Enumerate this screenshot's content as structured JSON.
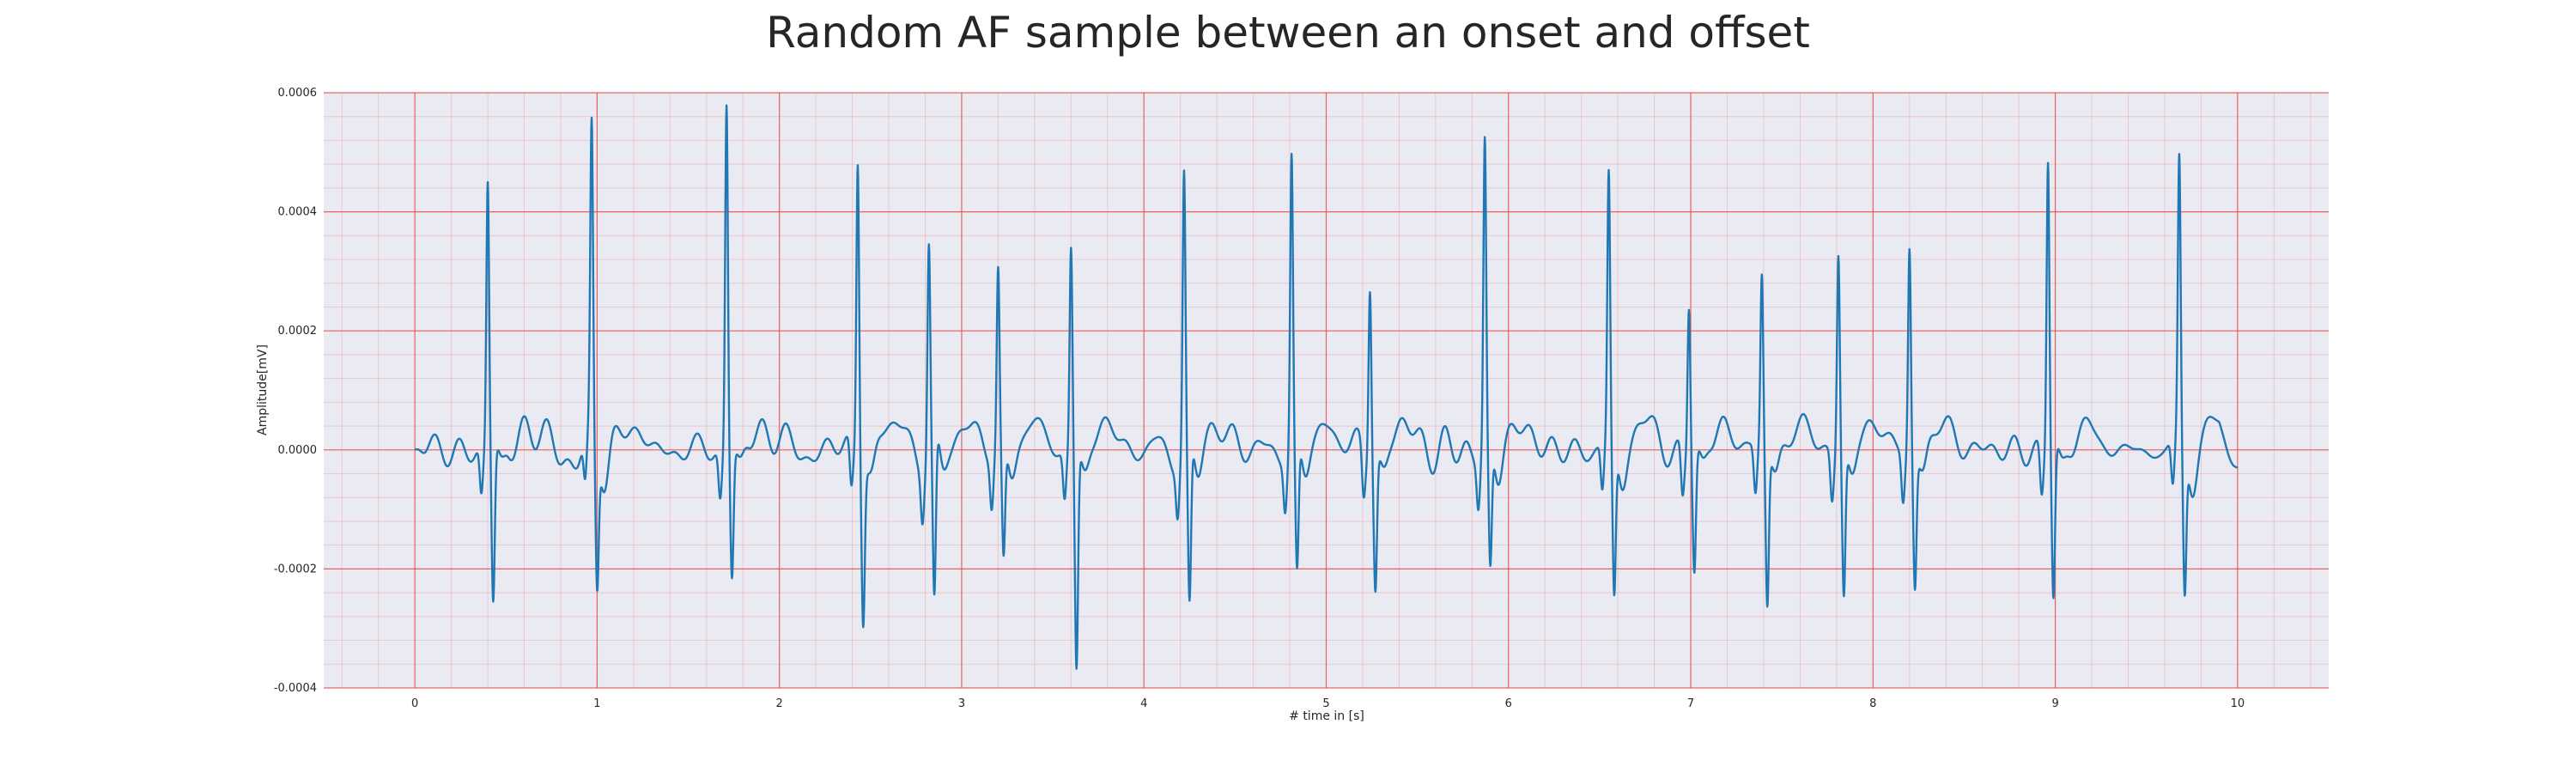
{
  "chart_data": {
    "type": "line",
    "title": "Random AF sample between an onset and offset",
    "xlabel": "# time in [s]",
    "ylabel": "Amplitude[mV]",
    "xlim": [
      -0.5,
      10.5
    ],
    "ylim": [
      -0.0004,
      0.0006
    ],
    "x_ticks": [
      0,
      1,
      2,
      3,
      4,
      5,
      6,
      7,
      8,
      9,
      10
    ],
    "y_ticks": [
      -0.0004,
      -0.0002,
      0.0,
      0.0002,
      0.0004,
      0.0006
    ],
    "x_tick_labels": [
      "0",
      "1",
      "2",
      "3",
      "4",
      "5",
      "6",
      "7",
      "8",
      "9",
      "10"
    ],
    "y_tick_labels": [
      "-0.0004",
      "-0.0002",
      "0.0000",
      "0.0002",
      "0.0004",
      "0.0006"
    ],
    "grid": true,
    "minor_grid": true,
    "grid_color": "#e8504f",
    "background_color": "#eaeaf2",
    "line_color": "#1f77b4",
    "series": [
      {
        "beats": [
          {
            "t": 0.4,
            "peak": 0.00045,
            "trough": -0.00026
          },
          {
            "t": 0.97,
            "peak": 0.00051,
            "trough": -0.00023
          },
          {
            "t": 1.71,
            "peak": 0.00059,
            "trough": -0.00021
          },
          {
            "t": 2.43,
            "peak": 0.0005,
            "trough": -0.00026
          },
          {
            "t": 2.82,
            "peak": 0.00035,
            "trough": -0.00028
          },
          {
            "t": 3.2,
            "peak": 0.0003,
            "trough": -0.00019
          },
          {
            "t": 3.6,
            "peak": 0.00034,
            "trough": -0.00037
          },
          {
            "t": 4.22,
            "peak": 0.00046,
            "trough": -0.00028
          },
          {
            "t": 4.81,
            "peak": 0.00049,
            "trough": -0.00022
          },
          {
            "t": 5.24,
            "peak": 0.0003,
            "trough": -0.00022
          },
          {
            "t": 5.87,
            "peak": 0.00051,
            "trough": -0.00021
          },
          {
            "t": 6.55,
            "peak": 0.00045,
            "trough": -0.00025
          },
          {
            "t": 6.99,
            "peak": 0.00026,
            "trough": -0.0002
          },
          {
            "t": 7.39,
            "peak": 0.00029,
            "trough": -0.00026
          },
          {
            "t": 7.81,
            "peak": 0.00034,
            "trough": -0.00024
          },
          {
            "t": 8.2,
            "peak": 0.00035,
            "trough": -0.00022
          },
          {
            "t": 8.96,
            "peak": 0.0005,
            "trough": -0.00025
          },
          {
            "t": 9.68,
            "peak": 0.00047,
            "trough": -0.00024
          }
        ]
      }
    ]
  }
}
